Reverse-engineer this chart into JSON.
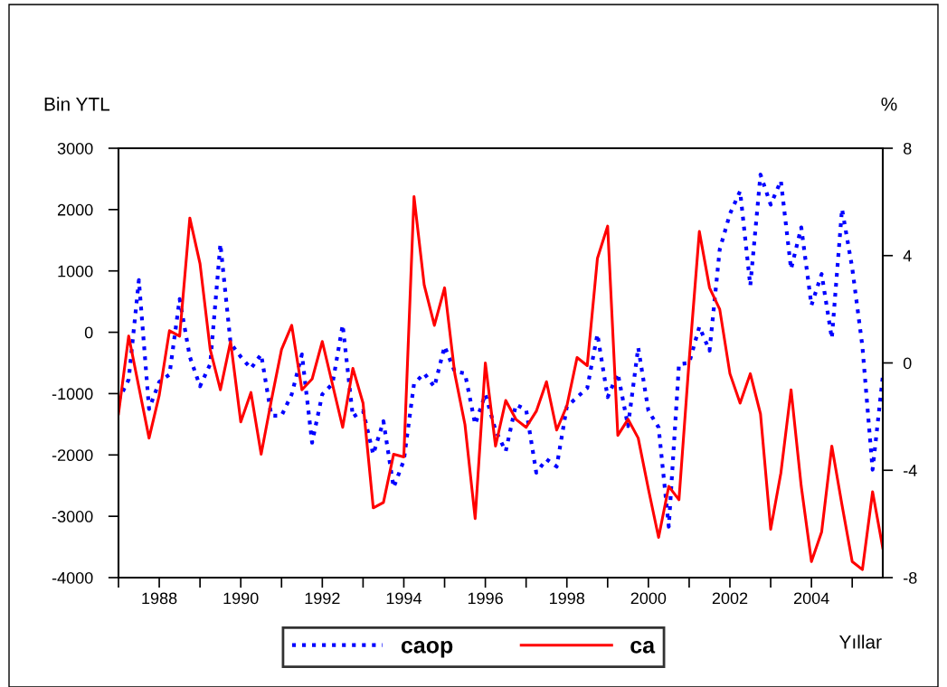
{
  "chart_data": {
    "type": "line",
    "xlabel": "Yıllar",
    "ylabel": "Bin YTL",
    "y2label": "%",
    "x": [
      1987,
      1987.25,
      1987.5,
      1987.75,
      1988,
      1988.25,
      1988.5,
      1988.75,
      1989,
      1989.25,
      1989.5,
      1989.75,
      1990,
      1990.25,
      1990.5,
      1990.75,
      1991,
      1991.25,
      1991.5,
      1991.75,
      1992,
      1992.25,
      1992.5,
      1992.75,
      1993,
      1993.25,
      1993.5,
      1993.75,
      1994,
      1994.25,
      1994.5,
      1994.75,
      1995,
      1995.25,
      1995.5,
      1995.75,
      1996,
      1996.25,
      1996.5,
      1996.75,
      1997,
      1997.25,
      1997.5,
      1997.75,
      1998,
      1998.25,
      1998.5,
      1998.75,
      1999,
      1999.25,
      1999.5,
      1999.75,
      2000,
      2000.25,
      2000.5,
      2000.75,
      2001,
      2001.25,
      2001.5,
      2001.75,
      2002,
      2002.25,
      2002.5,
      2002.75,
      2003,
      2003.25,
      2003.5,
      2003.75,
      2004,
      2004.25,
      2004.5,
      2004.75,
      2005,
      2005.25,
      2005.5,
      2005.75
    ],
    "series": [
      {
        "name": "caop",
        "color": "#0000ff",
        "line_style": "dotted",
        "values": [
          -1110,
          -770,
          850,
          -1250,
          -810,
          -690,
          540,
          -400,
          -880,
          -520,
          1440,
          -180,
          -400,
          -590,
          -360,
          -1360,
          -1360,
          -1010,
          -360,
          -1800,
          -1010,
          -840,
          120,
          -1380,
          -1280,
          -1990,
          -1450,
          -2530,
          -2090,
          -840,
          -670,
          -890,
          -230,
          -640,
          -670,
          -1500,
          -1010,
          -1600,
          -1940,
          -1180,
          -1260,
          -2290,
          -2070,
          -2190,
          -1210,
          -1060,
          -910,
          -30,
          -1060,
          -670,
          -1530,
          -250,
          -1280,
          -1550,
          -3170,
          -520,
          -500,
          90,
          -300,
          1350,
          1930,
          2300,
          760,
          2570,
          2080,
          2470,
          1030,
          1710,
          440,
          950,
          -100,
          2010,
          1050,
          -230,
          -2240,
          -720
        ]
      },
      {
        "name": "ca",
        "color": "#ff0000",
        "line_style": "solid",
        "axis": "y2",
        "values": [
          -1.9,
          1.0,
          -0.9,
          -2.8,
          -1.2,
          1.2,
          1.0,
          5.4,
          3.7,
          0.5,
          -1.0,
          0.8,
          -2.2,
          -1.1,
          -3.4,
          -1.4,
          0.5,
          1.4,
          -1.0,
          -0.6,
          0.8,
          -0.8,
          -2.4,
          -0.2,
          -1.5,
          -5.4,
          -5.2,
          -3.4,
          -3.5,
          6.2,
          2.9,
          1.4,
          2.8,
          -0.4,
          -2.3,
          -5.8,
          0.0,
          -3.1,
          -1.4,
          -2.1,
          -2.4,
          -1.8,
          -0.7,
          -2.5,
          -1.6,
          0.2,
          -0.1,
          3.9,
          5.1,
          -2.7,
          -2.1,
          -2.8,
          -4.7,
          -6.5,
          -4.6,
          -5.1,
          0.1,
          4.9,
          2.8,
          2.0,
          -0.4,
          -1.5,
          -0.4,
          -1.9,
          -6.2,
          -4.1,
          -1.0,
          -4.6,
          -7.4,
          -6.3,
          -3.1,
          -5.3,
          -7.4,
          -7.7,
          -4.8,
          -6.9
        ]
      }
    ],
    "xlim": [
      1987,
      2005.75
    ],
    "xticks": [
      {
        "value": 1987,
        "label": null
      },
      1988,
      {
        "value": 1989,
        "label": null
      },
      1990,
      {
        "value": 1991,
        "label": null
      },
      1992,
      {
        "value": 1993,
        "label": null
      },
      1994,
      {
        "value": 1995,
        "label": null
      },
      1996,
      {
        "value": 1997,
        "label": null
      },
      1998,
      {
        "value": 1999,
        "label": null
      },
      2000,
      {
        "value": 2001,
        "label": null
      },
      2002,
      {
        "value": 2003,
        "label": null
      },
      2004,
      {
        "value": 2005,
        "label": null
      }
    ],
    "ylim": [
      -4000,
      3000
    ],
    "yticks": [
      -4000,
      -3000,
      -2000,
      -1000,
      0,
      1000,
      2000,
      3000
    ],
    "y2lim": [
      -8,
      8
    ],
    "y2ticks": [
      -8,
      -4,
      0,
      4,
      8
    ],
    "grid": false,
    "legend": "bottom"
  }
}
